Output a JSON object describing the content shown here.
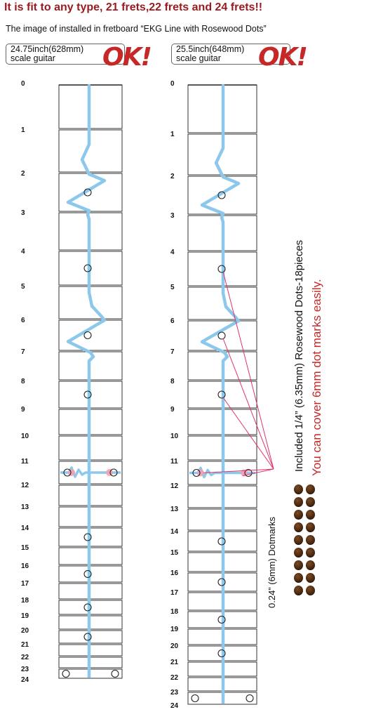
{
  "headline": "It is fit to any type, 21 frets,22 frets and 24 frets!!",
  "subline": "The image of  installed in fretboard “EKG Line with Rosewood Dots”",
  "left_neck": {
    "scale_line1": "24.75inch(628mm)",
    "scale_line2": "scale guitar",
    "ok": "OK!"
  },
  "right_neck": {
    "scale_line1": "25.5inch(648mm)",
    "scale_line2": "scale guitar",
    "ok": "OK!"
  },
  "fret_numbers": [
    "0",
    "1",
    "2",
    "3",
    "4",
    "5",
    "6",
    "7",
    "8",
    "9",
    "10",
    "11",
    "12",
    "13",
    "14",
    "15",
    "16",
    "17",
    "18",
    "19",
    "20",
    "21",
    "22",
    "23",
    "24"
  ],
  "side_text": {
    "line1": "Included 1/4”  (6.35mm)  Rosewood Dots-18pieces",
    "line2": "You can cover 6mm dot marks easily.",
    "dotmarks": "0.24” (6mm) Dotmarks"
  },
  "dots_count": 18,
  "colors": {
    "headline": "#9a1a1f",
    "ekg_line": "#8cc8ec",
    "ok_mark": "#c62828",
    "leader_line": "#e0336b",
    "highlight_dot": "#f3a0b4",
    "rosewood": "#4a2810"
  },
  "icons": [
    "ok-handwritten-mark",
    "rosewood-dot-icon",
    "dotmark-circle-icon"
  ]
}
